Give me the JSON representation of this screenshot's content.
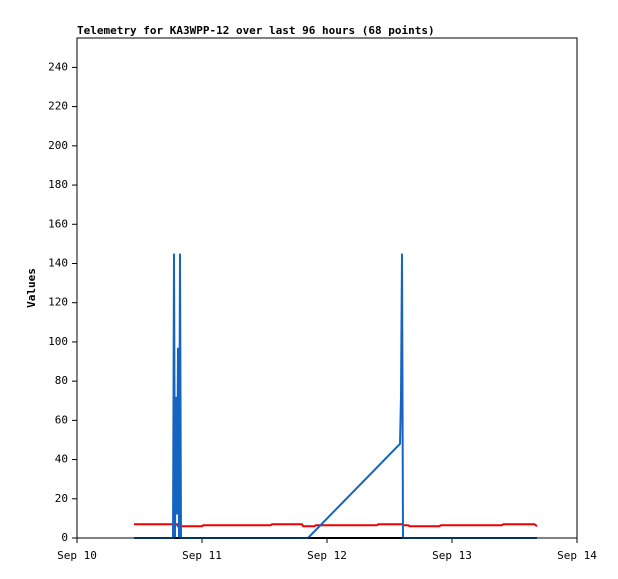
{
  "chart_data": {
    "type": "line",
    "title": "Telemetry for KA3WPP-12 over last 96 hours (68 points)",
    "y_label": "Values",
    "xlim": [
      10,
      14
    ],
    "xticks": [
      {
        "value": 10,
        "label": "Sep 10"
      },
      {
        "value": 11,
        "label": "Sep 11"
      },
      {
        "value": 12,
        "label": "Sep 12"
      },
      {
        "value": 13,
        "label": "Sep 13"
      },
      {
        "value": 14,
        "label": "Sep 14"
      }
    ],
    "ylim": [
      0,
      255
    ],
    "yticks": [
      0,
      20,
      40,
      60,
      80,
      100,
      120,
      140,
      160,
      180,
      200,
      220,
      240
    ],
    "grid": false,
    "series": [
      {
        "color": "#ee0000",
        "x": [
          10.456,
          10.8,
          10.808,
          11.0,
          11.01,
          11.55,
          11.56,
          11.8,
          11.81,
          11.9,
          11.91,
          12.4,
          12.41,
          12.6,
          12.61,
          12.65,
          12.66,
          12.9,
          12.91,
          13.4,
          13.41,
          13.66,
          13.68
        ],
        "values": [
          7,
          7,
          6,
          6,
          6.5,
          6.5,
          7,
          7,
          6,
          6,
          6.5,
          6.5,
          7,
          7,
          6.5,
          6.5,
          6,
          6,
          6.5,
          6.5,
          7,
          7,
          6
        ]
      },
      {
        "color": "#000000",
        "x": [
          10.456,
          13.68
        ],
        "values": [
          0,
          0
        ]
      },
      {
        "color": "#1565c0",
        "x": [
          10.456,
          10.768,
          10.776,
          10.784,
          10.792,
          10.8,
          10.808,
          10.816,
          10.824,
          10.832,
          11.848,
          12.584,
          12.592,
          12.6,
          12.608,
          13.68
        ],
        "values": [
          0,
          0,
          145,
          0,
          72,
          12,
          97,
          0,
          145,
          0,
          0,
          48,
          72,
          145,
          0,
          0
        ]
      }
    ]
  }
}
